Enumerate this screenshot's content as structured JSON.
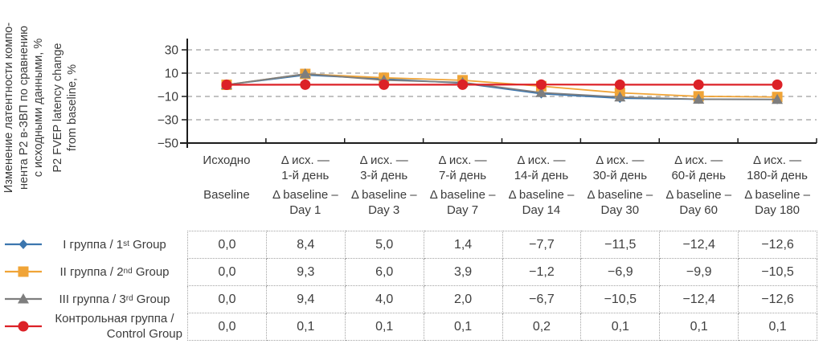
{
  "figure": {
    "axis_label": {
      "lines": [
        "Изменение латентности компо-",
        "нента Р2 в-ЗВП по сравнению",
        "с исходными данными, %",
        "P2 FVEP latency change",
        "from baseline, %"
      ]
    }
  },
  "chart_data": {
    "type": "line",
    "title": "",
    "ylabel_ru": "Изменение латентности компонента Р2 в-ЗВП по сравнению с исходными данными, %",
    "ylabel_en": "P2 FVEP latency change from baseline, %",
    "ylim": [
      -50,
      30
    ],
    "yticks": [
      30,
      10,
      -10,
      -30,
      -50
    ],
    "ytick_labels": [
      "30",
      "10",
      "−10",
      "−30",
      "−50"
    ],
    "grid": "horizontal-dashed",
    "legend_position": "left-of-table-rows",
    "categories": [
      {
        "ru": [
          "Исходно",
          ""
        ],
        "en": [
          "Baseline",
          ""
        ]
      },
      {
        "ru": [
          "Δ исх. —",
          "1-й день"
        ],
        "en": [
          "Δ baseline –",
          "Day 1"
        ]
      },
      {
        "ru": [
          "Δ исх. —",
          "3-й день"
        ],
        "en": [
          "Δ baseline –",
          "Day 3"
        ]
      },
      {
        "ru": [
          "Δ исх. —",
          "7-й день"
        ],
        "en": [
          "Δ baseline –",
          "Day 7"
        ]
      },
      {
        "ru": [
          "Δ исх. —",
          "14-й день"
        ],
        "en": [
          "Δ baseline –",
          "Day 14"
        ]
      },
      {
        "ru": [
          "Δ исх. —",
          "30-й день"
        ],
        "en": [
          "Δ baseline –",
          "Day 30"
        ]
      },
      {
        "ru": [
          "Δ исх. —",
          "60-й день"
        ],
        "en": [
          "Δ baseline –",
          "Day 60"
        ]
      },
      {
        "ru": [
          "Δ исх. —",
          "180-й день"
        ],
        "en": [
          "Δ baseline –",
          "Day 180"
        ]
      }
    ],
    "series": [
      {
        "name": "I группа / 1st Group",
        "marker": "diamond",
        "color": "#3C76AE",
        "values": [
          0.0,
          8.4,
          5.0,
          1.4,
          -7.7,
          -11.5,
          -12.4,
          -12.6
        ],
        "display": [
          "0,0",
          "8,4",
          "5,0",
          "1,4",
          "−7,7",
          "−11,5",
          "−12,4",
          "−12,6"
        ]
      },
      {
        "name": "II группа / 2nd Group",
        "marker": "square",
        "color": "#F0A437",
        "values": [
          0.0,
          9.3,
          6.0,
          3.9,
          -1.2,
          -6.9,
          -9.9,
          -10.5
        ],
        "display": [
          "0,0",
          "9,3",
          "6,0",
          "3,9",
          "−1,2",
          "−6,9",
          "−9,9",
          "−10,5"
        ]
      },
      {
        "name": "III группа / 3rd Group",
        "marker": "triangle",
        "color": "#7E7E7E",
        "values": [
          0.0,
          9.4,
          4.0,
          2.0,
          -6.7,
          -10.5,
          -12.4,
          -12.6
        ],
        "display": [
          "0,0",
          "9,4",
          "4,0",
          "2,0",
          "−6,7",
          "−10,5",
          "−12,4",
          "−12,6"
        ]
      },
      {
        "name": "Контрольная группа / Control Group",
        "marker": "circle",
        "color": "#DC2127",
        "values": [
          0.0,
          0.1,
          0.1,
          0.1,
          0.2,
          0.1,
          0.1,
          0.1
        ],
        "display": [
          "0,0",
          "0,1",
          "0,1",
          "0,1",
          "0,2",
          "0,1",
          "0,1",
          "0,1"
        ]
      }
    ],
    "legend": [
      {
        "lines": [
          [
            {
              "t": "I группа / 1"
            },
            {
              "t": "st",
              "sup": true
            },
            {
              "t": " Group"
            }
          ]
        ]
      },
      {
        "lines": [
          [
            {
              "t": "II группа / 2"
            },
            {
              "t": "nd",
              "sup": true
            },
            {
              "t": " Group"
            }
          ]
        ]
      },
      {
        "lines": [
          [
            {
              "t": "III группа / 3"
            },
            {
              "t": "rd",
              "sup": true
            },
            {
              "t": " Group"
            }
          ]
        ]
      },
      {
        "lines": [
          [
            {
              "t": "Контрольная группа /"
            }
          ],
          [
            {
              "t": "Control Group"
            }
          ]
        ]
      }
    ],
    "colors": {
      "axis": "#1c1c1c",
      "gridline": "#c2c2c2",
      "table_border": "#a3a3a3",
      "text": "#3c3c3c"
    }
  }
}
